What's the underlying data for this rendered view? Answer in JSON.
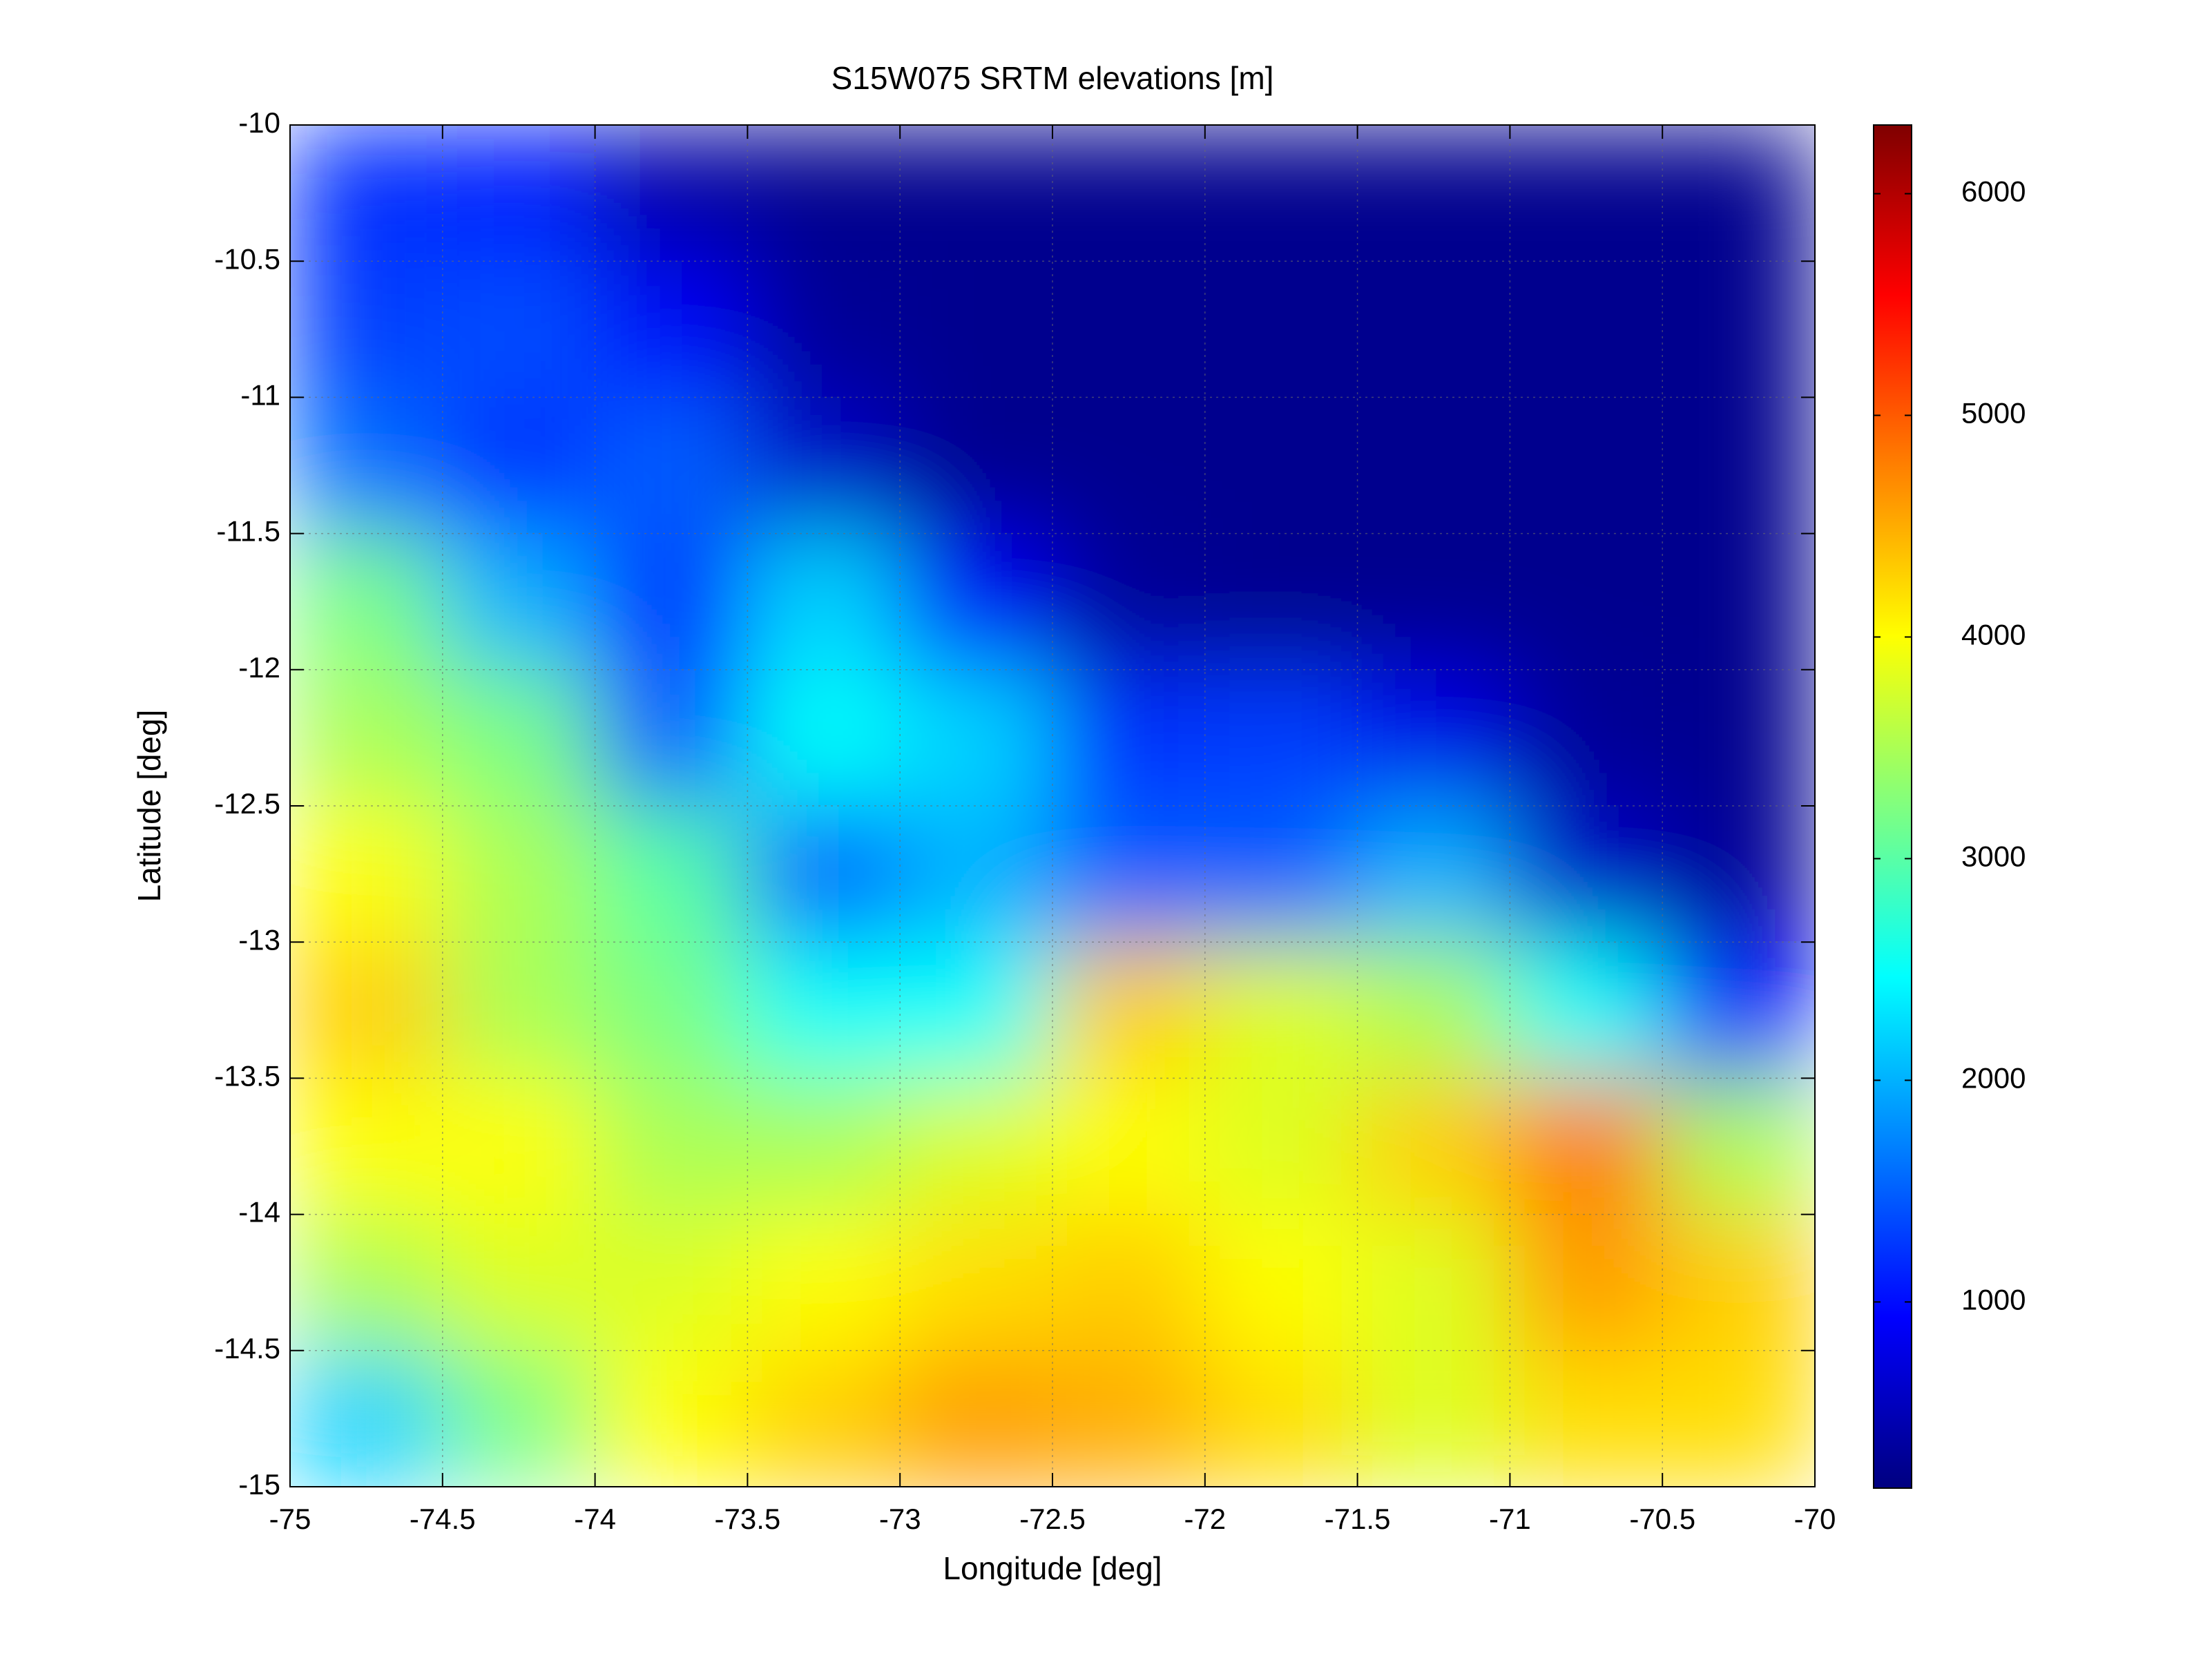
{
  "chart_data": {
    "type": "heatmap",
    "title": "S15W075 SRTM elevations [m]",
    "xlabel": "Longitude [deg]",
    "ylabel": "Latitude [deg]",
    "colormap": "jet",
    "grid": true,
    "x": [
      -74.75,
      -74.25,
      -73.75,
      -73.25,
      -72.75,
      -72.25,
      -71.75,
      -71.25,
      -70.75,
      -70.25
    ],
    "y": [
      -10.25,
      -10.75,
      -11.25,
      -11.75,
      -12.25,
      -12.75,
      -13.25,
      -13.75,
      -14.25,
      -14.75
    ],
    "z": [
      [
        1200,
        1100,
        400,
        250,
        250,
        250,
        250,
        250,
        250,
        250
      ],
      [
        1300,
        1400,
        900,
        300,
        250,
        250,
        250,
        250,
        250,
        250
      ],
      [
        1600,
        1200,
        1500,
        600,
        250,
        250,
        250,
        250,
        250,
        250
      ],
      [
        3200,
        2000,
        1200,
        2200,
        900,
        300,
        250,
        250,
        250,
        250
      ],
      [
        3500,
        3200,
        1500,
        2500,
        2200,
        1200,
        1300,
        800,
        300,
        250
      ],
      [
        4000,
        3500,
        3000,
        1500,
        2000,
        1500,
        1500,
        2000,
        600,
        300
      ],
      [
        4300,
        3500,
        3200,
        2500,
        2500,
        4300,
        3800,
        3500,
        2500,
        1000
      ],
      [
        4000,
        4000,
        3500,
        3500,
        3800,
        4000,
        3800,
        4300,
        4800,
        3500
      ],
      [
        3500,
        3800,
        3800,
        4000,
        4200,
        4300,
        4000,
        3800,
        4600,
        4300
      ],
      [
        2200,
        3200,
        4000,
        4300,
        4600,
        4500,
        4200,
        3800,
        4200,
        4200
      ]
    ],
    "xlim": [
      -75,
      -70
    ],
    "ylim": [
      -15,
      -10
    ],
    "xticks": [
      -75,
      -74.5,
      -74,
      -73.5,
      -73,
      -72.5,
      -72,
      -71.5,
      -71,
      -70.5,
      -70
    ],
    "yticks": [
      -10,
      -10.5,
      -11,
      -11.5,
      -12,
      -12.5,
      -13,
      -13.5,
      -14,
      -14.5,
      -15
    ],
    "clim": [
      160,
      6310
    ],
    "cticks": [
      1000,
      2000,
      3000,
      4000,
      5000,
      6000
    ]
  }
}
